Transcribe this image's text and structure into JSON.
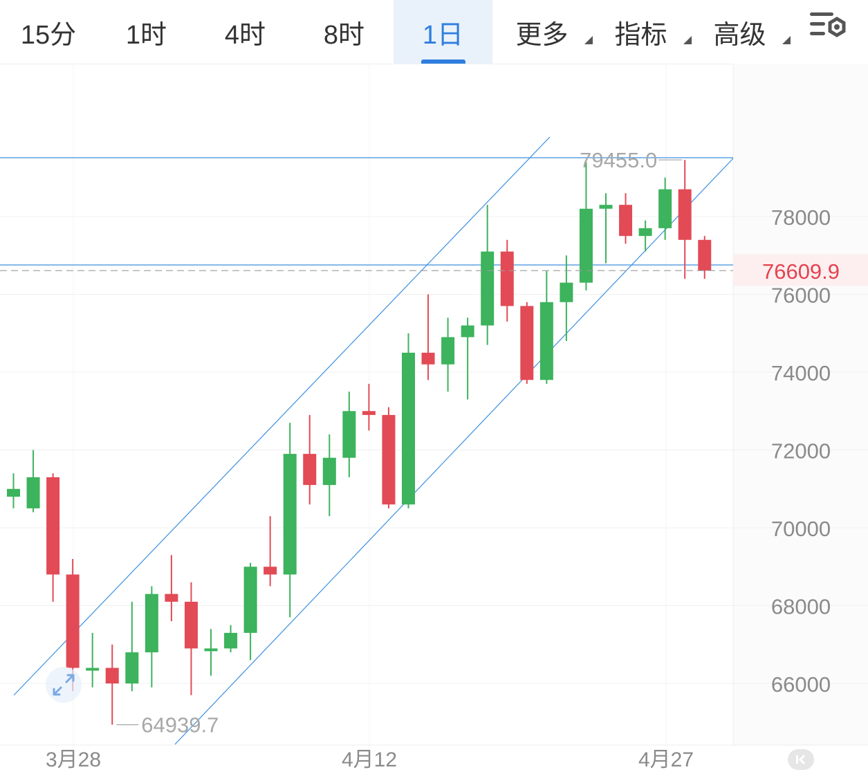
{
  "tabs": [
    {
      "label": "15分"
    },
    {
      "label": "1时"
    },
    {
      "label": "4时"
    },
    {
      "label": "8时"
    },
    {
      "label": "1日",
      "active": true
    },
    {
      "label": "更多",
      "dropdown": true
    },
    {
      "label": "指标",
      "dropdown": true
    },
    {
      "label": "高级",
      "dropdown": true
    }
  ],
  "icons": {
    "settings": "chart-settings-icon",
    "scroll_latest": "scroll-to-latest-icon",
    "shrink": "shrink-arrows-icon"
  },
  "colors": {
    "up": "#3cb35c",
    "down": "#e24a55",
    "line": "#3c8fe0",
    "accent": "#2f7ee0",
    "price_tag": "#e4434f"
  },
  "chart_data": {
    "type": "candlestick",
    "y_ticks": [
      "78000",
      "76000",
      "74000",
      "72000",
      "70000",
      "68000",
      "66000"
    ],
    "x_ticks": [
      "3月28",
      "4月12",
      "4月27"
    ],
    "last_price": "76609.9",
    "max_label": "79455.0",
    "min_label": "64939.7",
    "ylim": [
      64350,
      81800
    ],
    "grid": true,
    "candles": [
      {
        "o": 70800,
        "h": 71400,
        "l": 70500,
        "c": 71000
      },
      {
        "o": 70500,
        "h": 72000,
        "l": 70400,
        "c": 71300
      },
      {
        "o": 71300,
        "h": 71400,
        "l": 68100,
        "c": 68800
      },
      {
        "o": 68800,
        "h": 69200,
        "l": 65800,
        "c": 66400
      },
      {
        "o": 66400,
        "h": 67300,
        "l": 65900,
        "c": 66400
      },
      {
        "o": 66400,
        "h": 67000,
        "l": 64940,
        "c": 66000
      },
      {
        "o": 66000,
        "h": 68100,
        "l": 65800,
        "c": 66800
      },
      {
        "o": 66800,
        "h": 68500,
        "l": 65900,
        "c": 68300
      },
      {
        "o": 68300,
        "h": 69300,
        "l": 67600,
        "c": 68100
      },
      {
        "o": 68100,
        "h": 68600,
        "l": 65700,
        "c": 66900
      },
      {
        "o": 66900,
        "h": 67400,
        "l": 66200,
        "c": 66900
      },
      {
        "o": 66900,
        "h": 67500,
        "l": 66800,
        "c": 67300
      },
      {
        "o": 67300,
        "h": 69100,
        "l": 66600,
        "c": 69000
      },
      {
        "o": 69000,
        "h": 70300,
        "l": 68500,
        "c": 68800
      },
      {
        "o": 68800,
        "h": 72700,
        "l": 67700,
        "c": 71900
      },
      {
        "o": 71900,
        "h": 72900,
        "l": 70600,
        "c": 71100
      },
      {
        "o": 71100,
        "h": 72400,
        "l": 70300,
        "c": 71800
      },
      {
        "o": 71800,
        "h": 73500,
        "l": 71300,
        "c": 73000
      },
      {
        "o": 73000,
        "h": 73700,
        "l": 72500,
        "c": 72900
      },
      {
        "o": 72900,
        "h": 73100,
        "l": 70500,
        "c": 70600
      },
      {
        "o": 70600,
        "h": 75000,
        "l": 70500,
        "c": 74500
      },
      {
        "o": 74500,
        "h": 76000,
        "l": 73800,
        "c": 74200
      },
      {
        "o": 74200,
        "h": 75400,
        "l": 73500,
        "c": 74900
      },
      {
        "o": 74900,
        "h": 75400,
        "l": 73300,
        "c": 75200
      },
      {
        "o": 75200,
        "h": 78300,
        "l": 74700,
        "c": 77100
      },
      {
        "o": 77100,
        "h": 77400,
        "l": 75300,
        "c": 75700
      },
      {
        "o": 75700,
        "h": 75800,
        "l": 73700,
        "c": 73800
      },
      {
        "o": 73800,
        "h": 76600,
        "l": 73700,
        "c": 75800
      },
      {
        "o": 75800,
        "h": 77000,
        "l": 74800,
        "c": 76300
      },
      {
        "o": 76300,
        "h": 79400,
        "l": 76100,
        "c": 78200
      },
      {
        "o": 78200,
        "h": 78600,
        "l": 76800,
        "c": 78300
      },
      {
        "o": 78300,
        "h": 78600,
        "l": 77300,
        "c": 77500
      },
      {
        "o": 77500,
        "h": 77900,
        "l": 77100,
        "c": 77700
      },
      {
        "o": 77700,
        "h": 79000,
        "l": 77400,
        "c": 78700
      },
      {
        "o": 78700,
        "h": 79455,
        "l": 76400,
        "c": 77400
      },
      {
        "o": 77400,
        "h": 77500,
        "l": 76400,
        "c": 76610
      }
    ]
  }
}
